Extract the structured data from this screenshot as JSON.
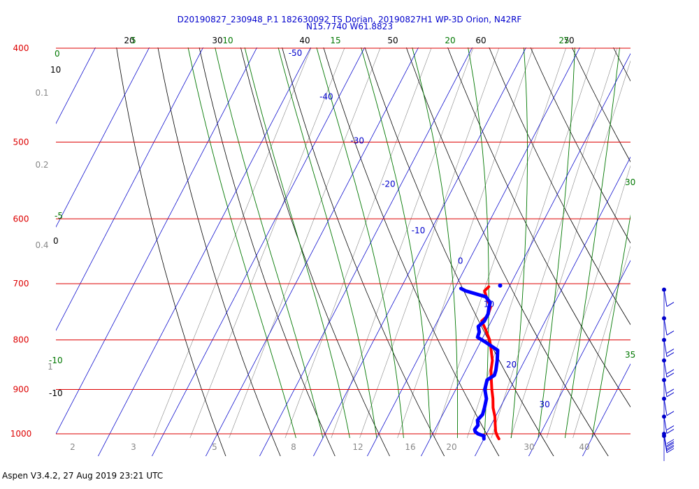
{
  "title_line1": "D20190827_230948_P.1 182630092 TS Dorian, 20190827H1 WP-3D Orion, N42RF",
  "title_line2": "N15.7740 W61.8823",
  "footer": "Aspen V3.4.2, 27 Aug 2019  23:21 UTC",
  "colors": {
    "isobar": "#dd0000",
    "isotherm": "#0000cc",
    "dry_adiabat": "#000000",
    "moist_adiabat": "#007700",
    "mixing_ratio": "#888888",
    "temperature": "#ff0000",
    "dewpoint": "#0000ff",
    "wind": "#0000cc"
  },
  "chart_data": {
    "type": "skew-t",
    "pressure_range": [
      1010,
      400
    ],
    "isobars": [
      "400",
      "500",
      "600",
      "700",
      "800",
      "900",
      "1000"
    ],
    "isotherm_labels": [
      "-50",
      "-40",
      "-30",
      "-20",
      "-10",
      "0",
      "10",
      "20",
      "30"
    ],
    "top_temperature_labels": [
      "20",
      "30",
      "40",
      "50",
      "60",
      "70"
    ],
    "moist_adiabat_top_labels": [
      "5",
      "10",
      "15",
      "20",
      "25"
    ],
    "moist_adiabat_left_labels": [
      "0",
      "-5",
      "-10"
    ],
    "moist_adiabat_right_labels": [
      "30",
      "35"
    ],
    "dry_adiabat_left_labels": [
      "10",
      "0",
      "-10"
    ],
    "mixing_ratio_left_labels": [
      "0.1",
      "0.2",
      "0.4",
      "1"
    ],
    "mixing_ratio_bottom_labels": [
      "2",
      "3",
      "5",
      "8",
      "12",
      "16",
      "20",
      "30",
      "40"
    ],
    "series": [
      {
        "name": "temperature",
        "points": [
          {
            "p": 1012,
            "t": 22.8
          },
          {
            "p": 1005,
            "t": 22.2
          },
          {
            "p": 995,
            "t": 21.5
          },
          {
            "p": 980,
            "t": 20.8
          },
          {
            "p": 960,
            "t": 19.9
          },
          {
            "p": 940,
            "t": 18.7
          },
          {
            "p": 920,
            "t": 17.8
          },
          {
            "p": 900,
            "t": 16.7
          },
          {
            "p": 880,
            "t": 15.7
          },
          {
            "p": 860,
            "t": 14.7
          },
          {
            "p": 840,
            "t": 14.0
          },
          {
            "p": 820,
            "t": 12.8
          },
          {
            "p": 800,
            "t": 11.5
          },
          {
            "p": 780,
            "t": 9.7
          },
          {
            "p": 765,
            "t": 8.2
          },
          {
            "p": 755,
            "t": 8.8
          },
          {
            "p": 740,
            "t": 8.5
          },
          {
            "p": 725,
            "t": 7.0
          },
          {
            "p": 712,
            "t": 5.8
          },
          {
            "p": 705,
            "t": 6.2
          }
        ]
      },
      {
        "name": "dewpoint",
        "points": [
          {
            "p": 1012,
            "t": 20.0
          },
          {
            "p": 1005,
            "t": 19.7
          },
          {
            "p": 1000,
            "t": 18.4
          },
          {
            "p": 995,
            "t": 17.7
          },
          {
            "p": 990,
            "t": 17.4
          },
          {
            "p": 980,
            "t": 17.6
          },
          {
            "p": 968,
            "t": 17.0
          },
          {
            "p": 955,
            "t": 17.4
          },
          {
            "p": 940,
            "t": 17.1
          },
          {
            "p": 920,
            "t": 16.6
          },
          {
            "p": 900,
            "t": 15.4
          },
          {
            "p": 880,
            "t": 14.9
          },
          {
            "p": 870,
            "t": 15.8
          },
          {
            "p": 860,
            "t": 15.6
          },
          {
            "p": 840,
            "t": 14.9
          },
          {
            "p": 820,
            "t": 14.0
          },
          {
            "p": 805,
            "t": 11.1
          },
          {
            "p": 795,
            "t": 9.0
          },
          {
            "p": 785,
            "t": 8.8
          },
          {
            "p": 775,
            "t": 8.1
          },
          {
            "p": 765,
            "t": 8.7
          },
          {
            "p": 752,
            "t": 8.7
          },
          {
            "p": 742,
            "t": 8.3
          },
          {
            "p": 732,
            "t": 8.0
          },
          {
            "p": 722,
            "t": 6.6
          },
          {
            "p": 712,
            "t": 2.3
          },
          {
            "p": 708,
            "t": 1.2
          }
        ]
      }
    ],
    "top_point": {
      "p": 703,
      "t": 8.2
    },
    "wind_barbs": [
      {
        "p": 710,
        "barbs": 1
      },
      {
        "p": 760,
        "barbs": 1
      },
      {
        "p": 800,
        "barbs": 2
      },
      {
        "p": 840,
        "barbs": 2
      },
      {
        "p": 880,
        "barbs": 2
      },
      {
        "p": 920,
        "barbs": 1
      },
      {
        "p": 960,
        "barbs": 2
      },
      {
        "p": 1000,
        "barbs": 3
      },
      {
        "p": 1005,
        "barbs": 3
      }
    ]
  }
}
